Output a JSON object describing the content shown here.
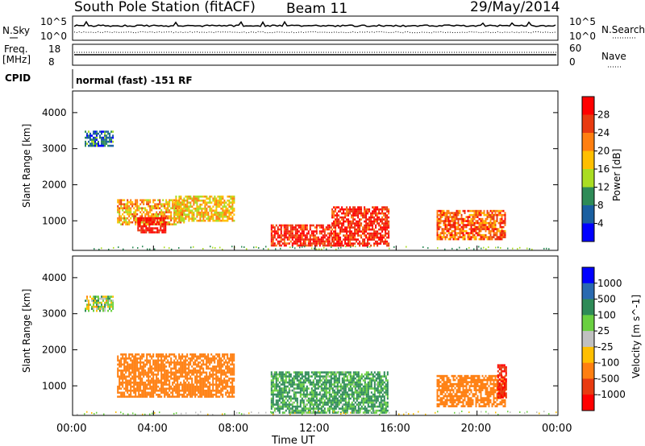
{
  "header": {
    "station": "South Pole Station (fitACF)",
    "beam": "Beam 11",
    "date": "29/May/2014"
  },
  "sky_panel": {
    "left_label": "N.Sky",
    "right_label": "N.Search",
    "left_ticks": [
      "10^5",
      "10^0"
    ],
    "right_ticks": [
      "10^5",
      "10^0"
    ]
  },
  "freq_panel": {
    "label_line1": "Freq.",
    "label_line2": "[MHz]",
    "right_label": "Nave",
    "left_ticks": [
      "18",
      "8"
    ],
    "right_ticks": [
      "60",
      "0"
    ]
  },
  "cpid": {
    "label": "CPID",
    "value": "normal (fast) -151 RF"
  },
  "power_panel": {
    "ylabel": "Slant Range [km]",
    "yticks": [
      "4000",
      "3000",
      "2000",
      "1000"
    ],
    "colorbar_label": "Power [dB]",
    "colorbar_ticks": [
      "28",
      "24",
      "20",
      "16",
      "12",
      "8",
      "4"
    ],
    "colorbar_colors": [
      "#ff0000",
      "#e83a10",
      "#ff7f10",
      "#ffbf00",
      "#aadd22",
      "#2e8b57",
      "#1a5fa0",
      "#0000ff"
    ]
  },
  "velocity_panel": {
    "ylabel": "Slant Range [km]",
    "yticks": [
      "4000",
      "3000",
      "2000",
      "1000"
    ],
    "colorbar_label": "Velocity [m s^-1]",
    "colorbar_ticks": [
      "1000",
      "500",
      "100",
      "25",
      "-25",
      "-100",
      "-500",
      "-1000"
    ],
    "colorbar_colors": [
      "#0000ff",
      "#2a6ab0",
      "#2e8b57",
      "#6ad040",
      "#c0c0c0",
      "#ffbf00",
      "#ff7f10",
      "#e83a10",
      "#ff0000"
    ]
  },
  "xaxis": {
    "label": "Time UT",
    "ticks": [
      "00:00",
      "04:00",
      "08:00",
      "12:00",
      "16:00",
      "20:00",
      "00:00"
    ]
  },
  "chart_data": {
    "type": "heatmap",
    "x_range_hours": [
      0,
      24
    ],
    "y_range_km": [
      180,
      4600
    ],
    "power_blobs": [
      {
        "t_start": 0.6,
        "t_end": 2.0,
        "r_low": 3100,
        "r_high": 3500,
        "value_db": 6
      },
      {
        "t_start": 2.2,
        "t_end": 5.5,
        "r_low": 900,
        "r_high": 1600,
        "value_db": 18
      },
      {
        "t_start": 3.2,
        "t_end": 4.6,
        "r_low": 700,
        "r_high": 1100,
        "value_db": 28
      },
      {
        "t_start": 5.0,
        "t_end": 8.0,
        "r_low": 1000,
        "r_high": 1700,
        "value_db": 16
      },
      {
        "t_start": 9.8,
        "t_end": 12.8,
        "r_low": 300,
        "r_high": 900,
        "value_db": 26
      },
      {
        "t_start": 12.8,
        "t_end": 15.6,
        "r_low": 300,
        "r_high": 1400,
        "value_db": 26
      },
      {
        "t_start": 18.0,
        "t_end": 21.4,
        "r_low": 500,
        "r_high": 1300,
        "value_db": 22
      }
    ],
    "velocity_blobs": [
      {
        "t_start": 0.6,
        "t_end": 2.0,
        "r_low": 3100,
        "r_high": 3500,
        "value_ms": 25
      },
      {
        "t_start": 2.2,
        "t_end": 8.0,
        "r_low": 700,
        "r_high": 1900,
        "value_ms": -300
      },
      {
        "t_start": 9.8,
        "t_end": 15.6,
        "r_low": 250,
        "r_high": 1400,
        "value_ms": 150
      },
      {
        "t_start": 18.0,
        "t_end": 21.4,
        "r_low": 450,
        "r_high": 1300,
        "value_ms": -300
      },
      {
        "t_start": 21.0,
        "t_end": 21.4,
        "r_low": 700,
        "r_high": 1600,
        "value_ms": -1000
      }
    ]
  }
}
